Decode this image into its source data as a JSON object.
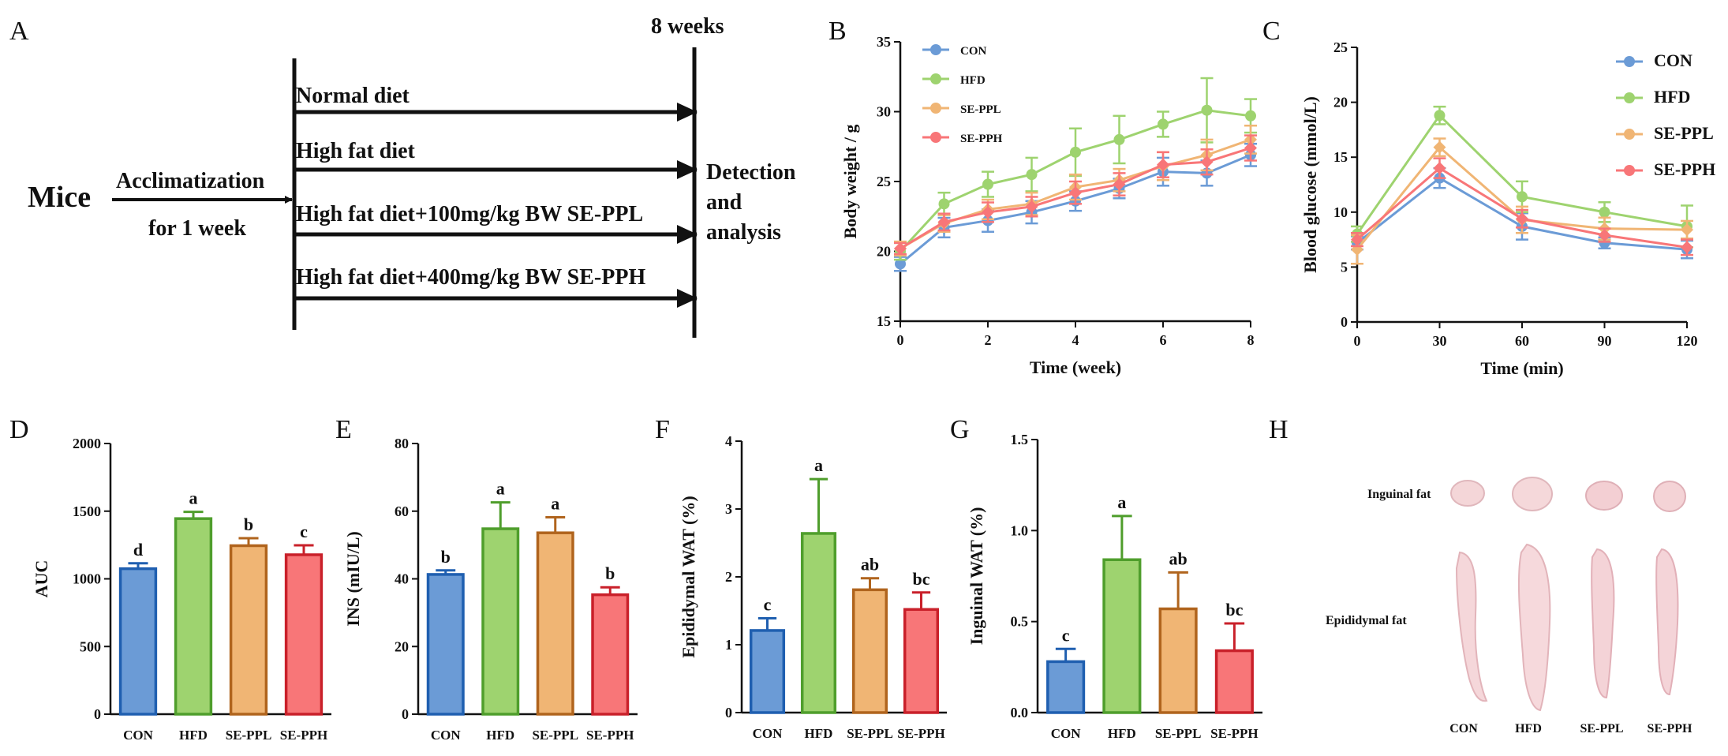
{
  "colors": {
    "CON": "#6b9bd6",
    "HFD": "#9ed36f",
    "SE-PPL": "#f0b574",
    "SE-PPH": "#f87678",
    "CON_edge": "#1f5fb0",
    "HFD_edge": "#4f9e2c",
    "SE-PPL_edge": "#b0641d",
    "SE-PPH_edge": "#c9202a",
    "tissue_light": "#f7dede",
    "tissue_dark": "#e8b9bd"
  },
  "panel_a": {
    "letter": "A",
    "title": "8 weeks",
    "subject": "Mice",
    "acclimatization_line1": "Acclimatization",
    "acclimatization_line2": "for 1 week",
    "diets": [
      "Normal diet",
      "High fat diet",
      "High fat diet+100mg/kg BW SE-PPL",
      "High fat diet+400mg/kg BW SE-PPH"
    ],
    "detection_lines": [
      "Detection",
      "and",
      "analysis"
    ]
  },
  "panel_h": {
    "letter": "H",
    "row_labels": [
      "Inguinal fat",
      "Epididymal fat"
    ],
    "groups": [
      "CON",
      "HFD",
      "SE-PPL",
      "SE-PPH"
    ]
  },
  "chart_data": [
    {
      "id": "B",
      "letter": "B",
      "type": "line",
      "title": "",
      "xlabel": "Time (week)",
      "ylabel": "Body weight / g",
      "xlim": [
        0,
        8
      ],
      "ylim": [
        15,
        35
      ],
      "xticks": [
        0,
        2,
        4,
        6,
        8
      ],
      "yticks": [
        15,
        20,
        25,
        30,
        35
      ],
      "x": [
        0,
        1,
        2,
        3,
        4,
        5,
        6,
        7,
        8
      ],
      "legend_position": "top-left",
      "legend_size": "small",
      "series": [
        {
          "name": "CON",
          "values": [
            19.1,
            21.7,
            22.2,
            22.8,
            23.6,
            24.5,
            25.7,
            25.6,
            26.9
          ],
          "errors": [
            0.5,
            0.7,
            0.8,
            0.8,
            0.7,
            0.7,
            1.0,
            0.9,
            0.8
          ]
        },
        {
          "name": "HFD",
          "values": [
            20.0,
            23.4,
            24.8,
            25.5,
            27.1,
            28.0,
            29.1,
            30.1,
            29.7
          ],
          "errors": [
            0.6,
            0.8,
            0.9,
            1.2,
            1.7,
            1.7,
            0.9,
            2.3,
            1.2
          ]
        },
        {
          "name": "SE-PPL",
          "values": [
            20.2,
            22.0,
            23.0,
            23.4,
            24.6,
            25.1,
            26.1,
            26.9,
            28.0
          ],
          "errors": [
            0.5,
            0.6,
            0.7,
            0.8,
            0.9,
            0.8,
            1.0,
            1.1,
            1.0
          ]
        },
        {
          "name": "SE-PPH",
          "values": [
            20.2,
            22.1,
            22.8,
            23.2,
            24.2,
            24.8,
            26.2,
            26.4,
            27.4
          ],
          "errors": [
            0.4,
            0.6,
            0.7,
            0.7,
            0.8,
            0.8,
            0.9,
            0.9,
            0.9
          ]
        }
      ]
    },
    {
      "id": "C",
      "letter": "C",
      "type": "line",
      "title": "",
      "xlabel": "Time (min)",
      "ylabel": "Blood glucose (mmol/L)",
      "xlim": [
        0,
        120
      ],
      "ylim": [
        0,
        25
      ],
      "xticks": [
        0,
        30,
        60,
        90,
        120
      ],
      "yticks": [
        0,
        5,
        10,
        15,
        20,
        25
      ],
      "x": [
        0,
        30,
        60,
        90,
        120
      ],
      "legend_position": "top-right",
      "legend_size": "large",
      "series": [
        {
          "name": "CON",
          "values": [
            7.2,
            13.1,
            8.7,
            7.2,
            6.6
          ],
          "errors": [
            0.6,
            0.9,
            1.2,
            0.5,
            0.8
          ]
        },
        {
          "name": "HFD",
          "values": [
            8.0,
            18.8,
            11.4,
            10.0,
            8.7
          ],
          "errors": [
            0.7,
            0.8,
            1.4,
            0.9,
            1.9
          ]
        },
        {
          "name": "SE-PPL",
          "values": [
            6.6,
            15.9,
            9.3,
            8.5,
            8.4
          ],
          "errors": [
            1.3,
            0.8,
            1.2,
            1.0,
            0.8
          ]
        },
        {
          "name": "SE-PPH",
          "values": [
            7.5,
            14.0,
            9.4,
            7.9,
            6.8
          ],
          "errors": [
            0.6,
            0.9,
            0.8,
            0.6,
            0.7
          ]
        }
      ]
    },
    {
      "id": "D",
      "letter": "D",
      "type": "bar",
      "ylabel": "AUC",
      "ylim": [
        0,
        2000
      ],
      "yticks": [
        0,
        500,
        1000,
        1500,
        2000
      ],
      "categories": [
        "CON",
        "HFD",
        "SE-PPL",
        "SE-PPH"
      ],
      "values": [
        1075,
        1445,
        1245,
        1178
      ],
      "errors": [
        40,
        50,
        55,
        70
      ],
      "letters": [
        "d",
        "a",
        "b",
        "c"
      ]
    },
    {
      "id": "E",
      "letter": "E",
      "type": "bar",
      "ylabel": "INS (mIU/L)",
      "ylim": [
        0,
        80
      ],
      "yticks": [
        0,
        20,
        40,
        60,
        80
      ],
      "categories": [
        "CON",
        "HFD",
        "SE-PPL",
        "SE-PPH"
      ],
      "values": [
        41.3,
        54.8,
        53.6,
        35.3
      ],
      "errors": [
        1.2,
        7.8,
        4.6,
        2.2
      ],
      "letters": [
        "b",
        "a",
        "a",
        "b"
      ]
    },
    {
      "id": "F",
      "letter": "F",
      "type": "bar",
      "ylabel": "Epididymal WAT (%)",
      "ylim": [
        0,
        4
      ],
      "yticks": [
        0,
        1,
        2,
        3,
        4
      ],
      "categories": [
        "CON",
        "HFD",
        "SE-PPL",
        "SE-PPH"
      ],
      "values": [
        1.21,
        2.64,
        1.81,
        1.52
      ],
      "errors": [
        0.18,
        0.8,
        0.17,
        0.25
      ],
      "letters": [
        "c",
        "a",
        "ab",
        "bc"
      ]
    },
    {
      "id": "G",
      "letter": "G",
      "type": "bar",
      "ylabel": "Inguinal WAT (%)",
      "ylim": [
        0,
        1.5
      ],
      "yticks": [
        "0.0",
        "0.5",
        "1.0",
        "1.5"
      ],
      "categories": [
        "CON",
        "HFD",
        "SE-PPL",
        "SE-PPH"
      ],
      "values": [
        0.28,
        0.84,
        0.57,
        0.34
      ],
      "errors": [
        0.07,
        0.24,
        0.2,
        0.15
      ],
      "letters": [
        "c",
        "a",
        "ab",
        "bc"
      ]
    }
  ]
}
